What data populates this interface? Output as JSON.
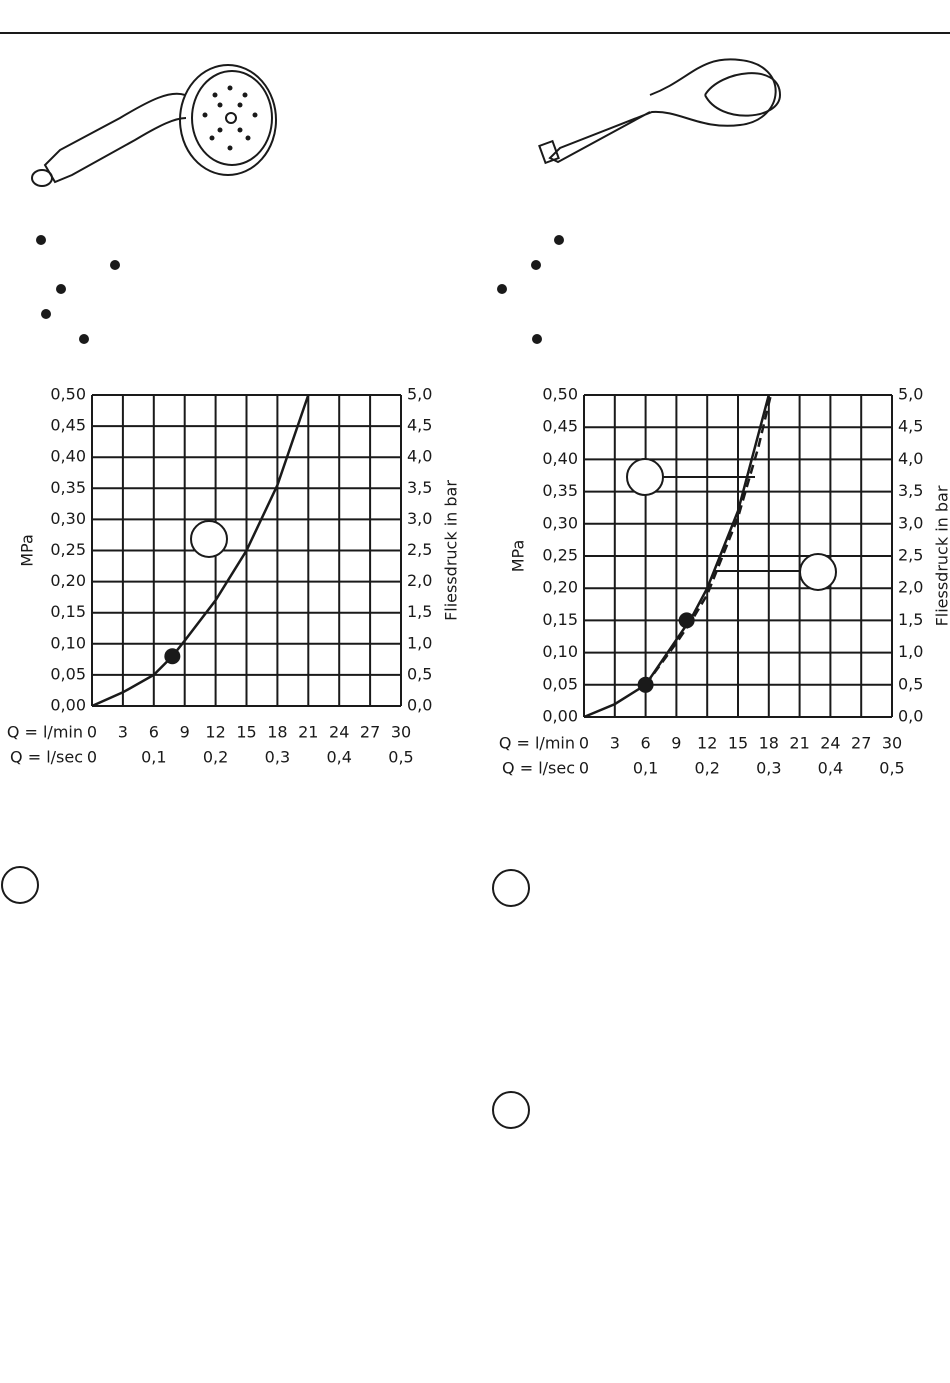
{
  "chart_data": [
    {
      "type": "line",
      "ylabel": "MPa",
      "y2label": "Fliessdruck in bar",
      "xlabel": "Q = l/min",
      "x2label": "Q = l/sec",
      "xlim": [
        0,
        30
      ],
      "xticks": [
        0,
        3,
        6,
        9,
        12,
        15,
        18,
        21,
        24,
        27,
        30
      ],
      "x2lim": [
        0,
        0.5
      ],
      "x2ticks": [
        0,
        {
          "value": 0.1,
          "label": "0,1"
        },
        {
          "value": 0.2,
          "label": "0,2"
        },
        {
          "value": 0.3,
          "label": "0,3"
        },
        {
          "value": 0.4,
          "label": "0,4"
        },
        {
          "value": 0.5,
          "label": "0,5"
        }
      ],
      "ylim": [
        0,
        0.5
      ],
      "yticks": [
        {
          "value": 0,
          "label": "0,00"
        },
        {
          "value": 0.05,
          "label": "0,05"
        },
        {
          "value": 0.1,
          "label": "0,10"
        },
        {
          "value": 0.15,
          "label": "0,15"
        },
        {
          "value": 0.2,
          "label": "0,20"
        },
        {
          "value": 0.25,
          "label": "0,25"
        },
        {
          "value": 0.3,
          "label": "0,30"
        },
        {
          "value": 0.35,
          "label": "0,35"
        },
        {
          "value": 0.4,
          "label": "0,40"
        },
        {
          "value": 0.45,
          "label": "0,45"
        },
        {
          "value": 0.5,
          "label": "0,50"
        }
      ],
      "y2lim": [
        0,
        5
      ],
      "y2ticks": [
        {
          "value": 0,
          "label": "0,0"
        },
        {
          "value": 0.5,
          "label": "0,5"
        },
        {
          "value": 1,
          "label": "1,0"
        },
        {
          "value": 1.5,
          "label": "1,5"
        },
        {
          "value": 2,
          "label": "2,0"
        },
        {
          "value": 2.5,
          "label": "2,5"
        },
        {
          "value": 3,
          "label": "3,0"
        },
        {
          "value": 3.5,
          "label": "3,5"
        },
        {
          "value": 4,
          "label": "4,0"
        },
        {
          "value": 4.5,
          "label": "4,5"
        },
        {
          "value": 5,
          "label": "5,0"
        }
      ],
      "grid": true,
      "series": [
        {
          "color": "#1a1a1a",
          "dashed": false,
          "x": [
            0,
            3,
            6,
            7.8,
            9,
            12,
            15,
            18,
            21
          ],
          "values": [
            0,
            0.022,
            0.05,
            0.08,
            0.105,
            0.17,
            0.25,
            0.355,
            0.5
          ]
        }
      ],
      "points": {
        "color": "#1a1a1a",
        "x": [
          7.8
        ],
        "values": [
          0.08
        ]
      }
    },
    {
      "type": "line",
      "ylabel": "MPa",
      "y2label": "Fliessdruck in bar",
      "xlabel": "Q = l/min",
      "x2label": "Q = l/sec",
      "xlim": [
        0,
        30
      ],
      "xticks": [
        0,
        3,
        6,
        9,
        12,
        15,
        18,
        21,
        24,
        27,
        30
      ],
      "x2lim": [
        0,
        0.5
      ],
      "x2ticks": [
        0,
        {
          "value": 0.1,
          "label": "0,1"
        },
        {
          "value": 0.2,
          "label": "0,2"
        },
        {
          "value": 0.3,
          "label": "0,3"
        },
        {
          "value": 0.4,
          "label": "0,4"
        },
        {
          "value": 0.5,
          "label": "0,5"
        }
      ],
      "ylim": [
        0,
        0.5
      ],
      "yticks": [
        {
          "value": 0,
          "label": "0,00"
        },
        {
          "value": 0.05,
          "label": "0,05"
        },
        {
          "value": 0.1,
          "label": "0,10"
        },
        {
          "value": 0.15,
          "label": "0,15"
        },
        {
          "value": 0.2,
          "label": "0,20"
        },
        {
          "value": 0.25,
          "label": "0,25"
        },
        {
          "value": 0.3,
          "label": "0,30"
        },
        {
          "value": 0.35,
          "label": "0,35"
        },
        {
          "value": 0.4,
          "label": "0,40"
        },
        {
          "value": 0.45,
          "label": "0,45"
        },
        {
          "value": 0.5,
          "label": "0,50"
        }
      ],
      "y2lim": [
        0,
        5
      ],
      "y2ticks": [
        {
          "value": 0,
          "label": "0,0"
        },
        {
          "value": 0.5,
          "label": "0,5"
        },
        {
          "value": 1,
          "label": "1,0"
        },
        {
          "value": 1.5,
          "label": "1,5"
        },
        {
          "value": 2,
          "label": "2,0"
        },
        {
          "value": 2.5,
          "label": "2,5"
        },
        {
          "value": 3,
          "label": "3,0"
        },
        {
          "value": 3.5,
          "label": "3,5"
        },
        {
          "value": 4,
          "label": "4,0"
        },
        {
          "value": 4.5,
          "label": "4,5"
        },
        {
          "value": 5,
          "label": "5,0"
        }
      ],
      "grid": true,
      "series": [
        {
          "color": "#1a1a1a",
          "dashed": false,
          "x": [
            0,
            3,
            6,
            9,
            10.5,
            12,
            15,
            17,
            18
          ],
          "values": [
            0,
            0.02,
            0.05,
            0.12,
            0.155,
            0.2,
            0.32,
            0.44,
            0.5
          ]
        },
        {
          "color": "#1a1a1a",
          "dashed": true,
          "x": [
            6,
            9,
            10.5,
            12,
            15,
            17,
            18.2
          ],
          "values": [
            0.05,
            0.115,
            0.15,
            0.19,
            0.31,
            0.42,
            0.5
          ]
        }
      ],
      "points": {
        "color": "#1a1a1a",
        "x": [
          6,
          10
        ],
        "values": [
          0.05,
          0.15
        ]
      }
    }
  ]
}
